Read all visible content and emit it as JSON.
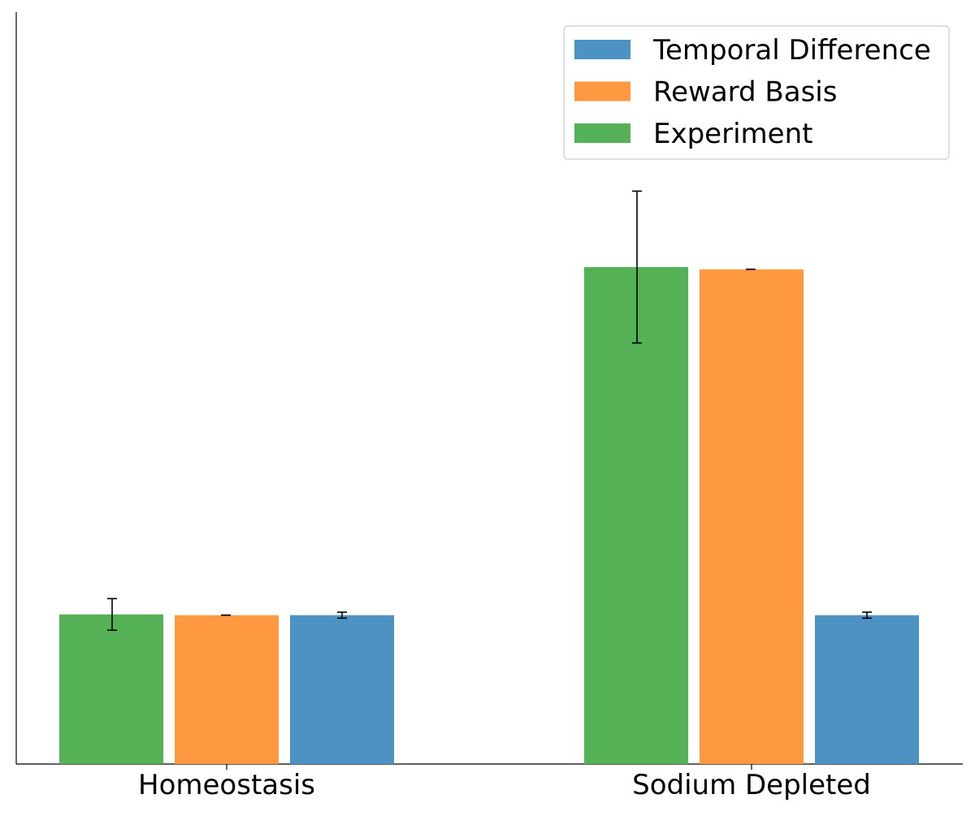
{
  "chart_data": {
    "type": "bar",
    "title": "",
    "xlabel": "",
    "ylabel": "",
    "categories": [
      "Homeostasis",
      "Sodium Depleted"
    ],
    "ylim": [
      0,
      1
    ],
    "y_ticks_shown": false,
    "grid": false,
    "series": [
      {
        "name": "Experiment",
        "color": "#55b155",
        "values": [
          0.199,
          0.661
        ],
        "errors": [
          0.021,
          0.101
        ]
      },
      {
        "name": "Reward Basis",
        "color": "#fe9941",
        "values": [
          0.198,
          0.658
        ],
        "errors": [
          0.0,
          0.0
        ]
      },
      {
        "name": "Temporal Difference",
        "color": "#4c93c3",
        "values": [
          0.198,
          0.198
        ],
        "errors": [
          0.004,
          0.004
        ]
      }
    ],
    "legend": {
      "placement": "top-right",
      "order": [
        "Temporal Difference",
        "Reward Basis",
        "Experiment"
      ]
    }
  }
}
